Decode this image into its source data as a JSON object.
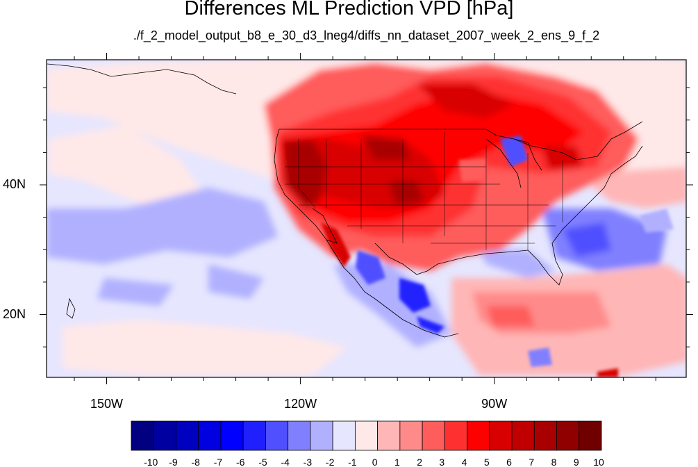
{
  "title": "Differences ML Prediction VPD [hPa]",
  "subtitle": "./f_2_model_output_b8_e_30_d3_lneg4/diffs_nn_dataset_2007_week_2_ens_9_f_2",
  "lat_labels": [
    {
      "text": "40N",
      "value": 40
    },
    {
      "text": "20N",
      "value": 20
    }
  ],
  "lon_labels": [
    {
      "text": "150W",
      "value": -150
    },
    {
      "text": "120W",
      "value": -120
    },
    {
      "text": "90W",
      "value": -90
    }
  ],
  "map_extent": {
    "lon": [
      -159.3,
      -60.3
    ],
    "lat": [
      10.3,
      59.3
    ]
  },
  "colorbar": {
    "labels": [
      "-10",
      "-9",
      "-8",
      "-7",
      "-6",
      "-5",
      "-4",
      "-3",
      "-2",
      "-1",
      "0",
      "1",
      "2",
      "3",
      "4",
      "5",
      "6",
      "7",
      "8",
      "9",
      "10"
    ],
    "colors": [
      "#000080",
      "#0000a0",
      "#0000c0",
      "#0000e0",
      "#0000ff",
      "#2020ff",
      "#5050ff",
      "#8080ff",
      "#b0b0ff",
      "#e6e6ff",
      "#ffe8e8",
      "#ffb6b6",
      "#ff8a8a",
      "#ff5c5c",
      "#ff3030",
      "#ff0000",
      "#d80000",
      "#c00000",
      "#a80000",
      "#900000",
      "#700000"
    ]
  }
}
